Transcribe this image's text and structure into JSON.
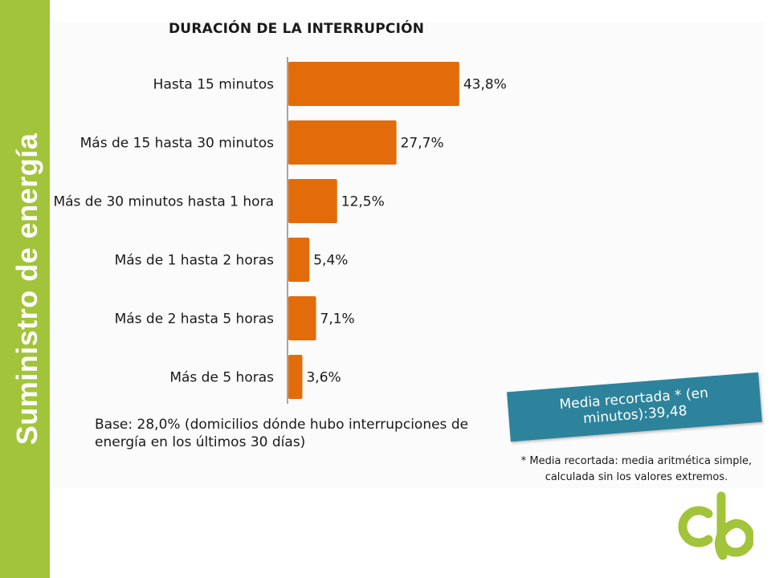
{
  "sidebar": {
    "title": "Suministro de energía"
  },
  "chart_data": {
    "type": "bar",
    "orientation": "horizontal",
    "title": "DURACIÓN DE LA INTERRUPCIÓN",
    "categories": [
      "Hasta 15 minutos",
      "Más de 15 hasta 30 minutos",
      "Más de 30 minutos hasta 1 hora",
      "Más de 1 hasta 2 horas",
      "Más de 2 hasta 5 horas",
      "Más de 5 horas"
    ],
    "values": [
      43.8,
      27.7,
      12.5,
      5.4,
      7.1,
      3.6
    ],
    "value_labels": [
      "43,8%",
      "27,7%",
      "12,5%",
      "5,4%",
      "7,1%",
      "3,6%"
    ],
    "xlim": [
      0,
      50
    ],
    "bar_color": "#e36c0a",
    "axis_color": "#8a8a8a",
    "grid": false,
    "legend": "none"
  },
  "base_note": "Base: 28,0% (domicilios dónde hubo interrupciones de energía en los últimos 30 días)",
  "callout": {
    "text": "Media recortada * (en minutos):39,48",
    "color": "#2c839b"
  },
  "footnote": "* Media recortada: media aritmética simple, calculada sin los valores extremos.",
  "brand": {
    "color": "#a2c43a",
    "logo_icon": "cb-logo-icon"
  }
}
